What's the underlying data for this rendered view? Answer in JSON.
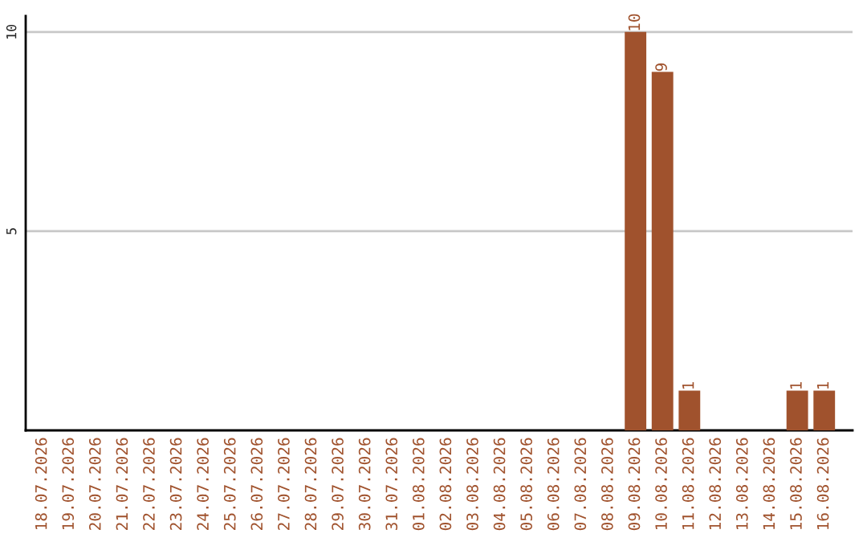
{
  "chart_data": {
    "type": "bar",
    "categories": [
      "18.07.2026",
      "19.07.2026",
      "20.07.2026",
      "21.07.2026",
      "22.07.2026",
      "23.07.2026",
      "24.07.2026",
      "25.07.2026",
      "26.07.2026",
      "27.07.2026",
      "28.07.2026",
      "29.07.2026",
      "30.07.2026",
      "31.07.2026",
      "01.08.2026",
      "02.08.2026",
      "03.08.2026",
      "04.08.2026",
      "05.08.2026",
      "06.08.2026",
      "07.08.2026",
      "08.08.2026",
      "09.08.2026",
      "10.08.2026",
      "11.08.2026",
      "12.08.2026",
      "13.08.2026",
      "14.08.2026",
      "15.08.2026",
      "16.08.2026"
    ],
    "values": [
      0,
      0,
      0,
      0,
      0,
      0,
      0,
      0,
      0,
      0,
      0,
      0,
      0,
      0,
      0,
      0,
      0,
      0,
      0,
      0,
      0,
      0,
      10,
      9,
      1,
      0,
      0,
      0,
      1,
      1
    ],
    "value_labels": [
      null,
      null,
      null,
      null,
      null,
      null,
      null,
      null,
      null,
      null,
      null,
      null,
      null,
      null,
      null,
      null,
      null,
      null,
      null,
      null,
      null,
      null,
      "10",
      "9",
      "1",
      null,
      null,
      null,
      "1",
      "1"
    ],
    "color": "#a0522d",
    "ylim": [
      0,
      10.4
    ],
    "yticks": [
      5,
      10
    ],
    "grid": "y"
  }
}
